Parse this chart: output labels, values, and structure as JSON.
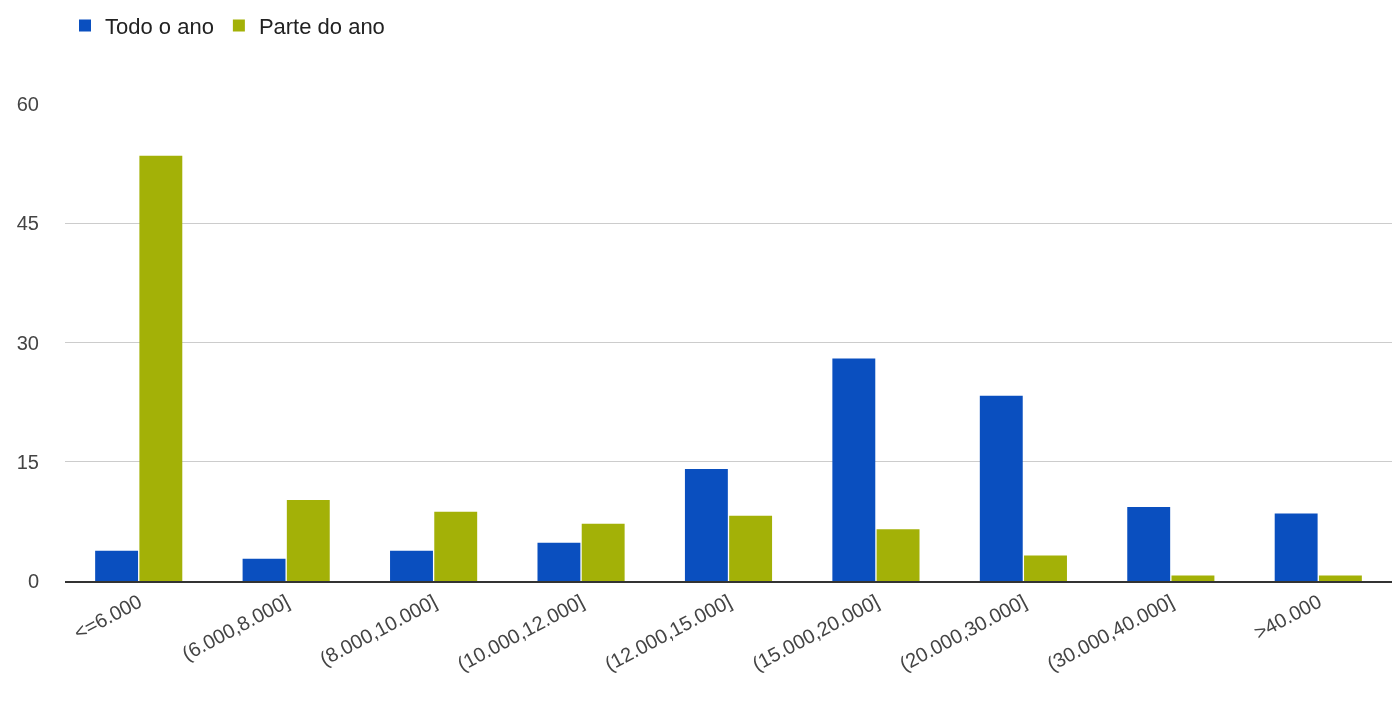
{
  "chart_data": {
    "type": "bar",
    "categories": [
      "<=6.000",
      "(6.000,8.000]",
      "(8.000,10.000]",
      "(10.000,12.000]",
      "(12.000,15.000]",
      "(15.000,20.000]",
      "(20.000,30.000]",
      "(30.000,40.000]",
      ">40.000"
    ],
    "series": [
      {
        "name": "Todo o ano",
        "color": "#0a4fbf",
        "values": [
          3.8,
          2.8,
          3.8,
          4.8,
          14.1,
          28.0,
          23.3,
          9.3,
          8.5
        ]
      },
      {
        "name": "Parte do ano",
        "color": "#a3b107",
        "values": [
          53.5,
          10.2,
          8.7,
          7.2,
          8.2,
          6.5,
          3.2,
          0.7,
          0.7
        ]
      }
    ],
    "ylim": [
      0,
      60
    ],
    "yticks": [
      0,
      15,
      30,
      45,
      60
    ],
    "grid": "y",
    "legend": "top left"
  }
}
